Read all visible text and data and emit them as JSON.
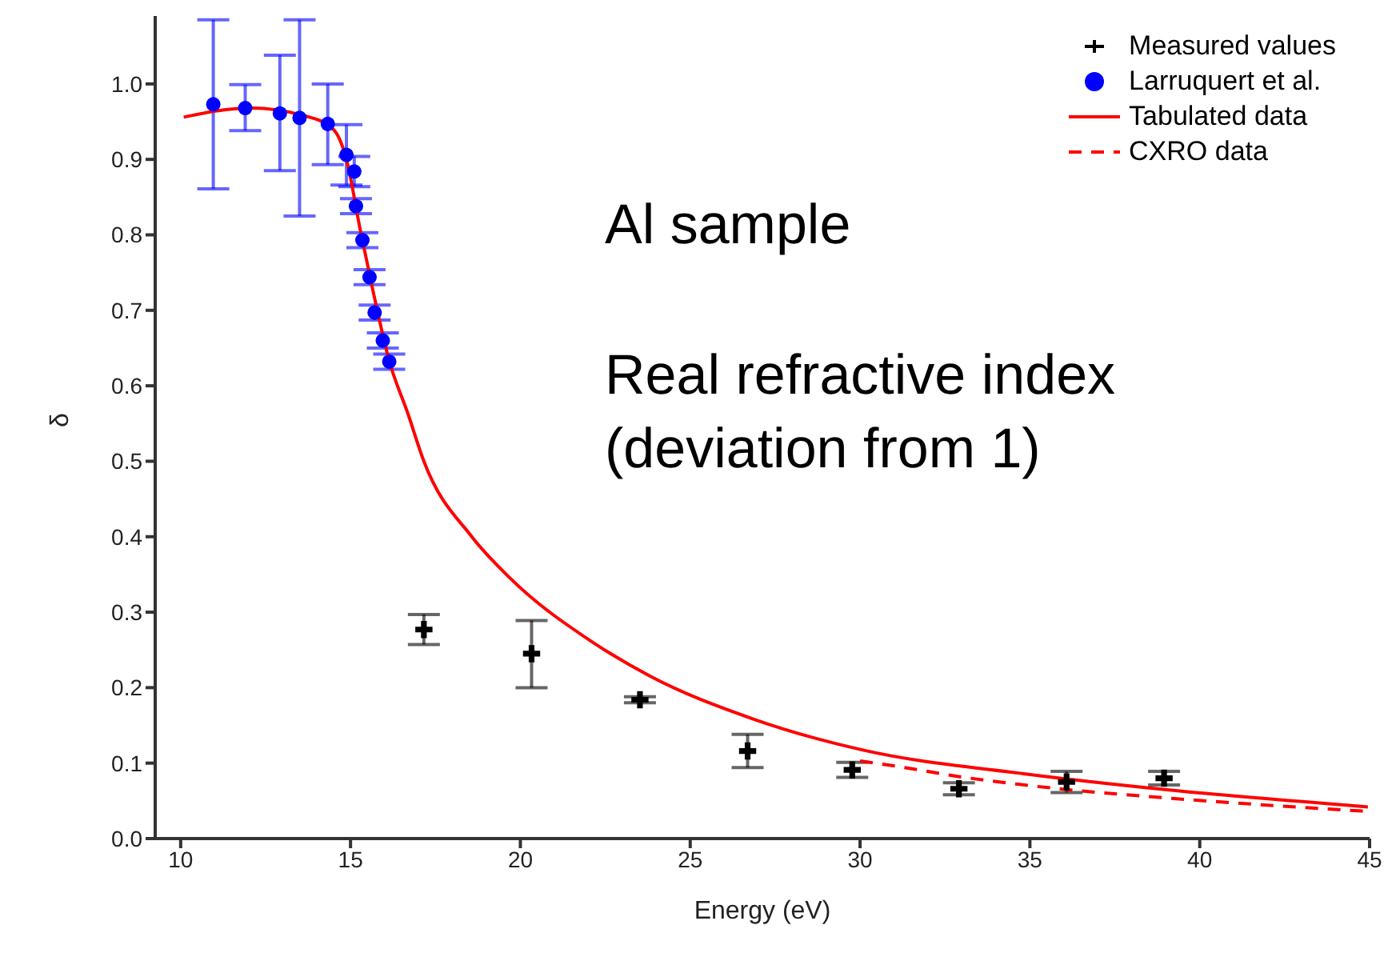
{
  "chart_data": {
    "type": "scatter",
    "xlabel": "Energy (eV)",
    "ylabel": "δ",
    "xlim": [
      9.25,
      45
    ],
    "ylim": [
      0,
      1.09
    ],
    "xticks": [
      10,
      15,
      20,
      25,
      30,
      35,
      40,
      45
    ],
    "yticks": [
      {
        "value": 0,
        "label": "0.0"
      },
      0.1,
      0.2,
      0.3,
      0.4,
      0.5,
      0.6,
      0.7,
      0.8,
      0.9,
      {
        "value": 1,
        "label": "1.0"
      }
    ],
    "grid": false,
    "legend": "top right",
    "annotations": [
      "Al sample",
      "Real refractive index (deviation from 1)"
    ],
    "series": [
      {
        "name": "Measured values",
        "color": "#000000",
        "marker": "cross",
        "x": [
          17.16,
          20.33,
          23.52,
          26.69,
          29.77,
          32.91,
          36.08,
          38.95
        ],
        "values": [
          0.277,
          0.245,
          0.184,
          0.116,
          0.091,
          0.066,
          0.075,
          0.08
        ],
        "errors": [
          0.02,
          [
            0.2,
            0.289
          ],
          0.004,
          0.022,
          0.01,
          0.008,
          0.014,
          0.009
        ]
      },
      {
        "name": "Larruquert et al.",
        "color": "#0000ff",
        "marker": "circle",
        "x": [
          10.96,
          11.9,
          12.92,
          13.5,
          14.33,
          14.88,
          15.11,
          15.16,
          15.35,
          15.56,
          15.71,
          15.95,
          16.14
        ],
        "values": [
          0.973,
          0.968,
          0.961,
          0.955,
          0.947,
          0.906,
          0.884,
          0.838,
          0.793,
          0.744,
          0.697,
          0.66,
          0.632
        ],
        "errors": [
          [
            0.861,
            1.085
          ],
          [
            0.938,
            0.999
          ],
          [
            0.885,
            1.038
          ],
          [
            0.825,
            1.085
          ],
          [
            0.893,
            1.0
          ],
          0.04,
          0.02,
          0.01,
          0.01,
          0.01,
          0.01,
          0.01,
          0.01
        ]
      },
      {
        "type": "line",
        "name": "Tabulated data",
        "color": "#ff0000",
        "line_style": "solid",
        "x": [
          10.09,
          12.05,
          13.63,
          14.49,
          14.88,
          15.28,
          15.67,
          16.14,
          16.69,
          17.16,
          18.57,
          19.7,
          22.1,
          23.83,
          26.82,
          30.11,
          34.82,
          38.98,
          44.95
        ],
        "values": [
          0.956,
          0.968,
          0.958,
          0.94,
          0.9,
          0.808,
          0.724,
          0.633,
          0.563,
          0.5,
          0.4,
          0.345,
          0.261,
          0.215,
          0.159,
          0.117,
          0.086,
          0.065,
          0.042
        ]
      },
      {
        "type": "line",
        "name": "CXRO data",
        "color": "#ff0000",
        "line_style": "dashed",
        "x": [
          30.0,
          31.05,
          32.94,
          36.08,
          38.98,
          44.95
        ],
        "values": [
          0.103,
          0.096,
          0.082,
          0.065,
          0.054,
          0.036
        ]
      }
    ]
  }
}
